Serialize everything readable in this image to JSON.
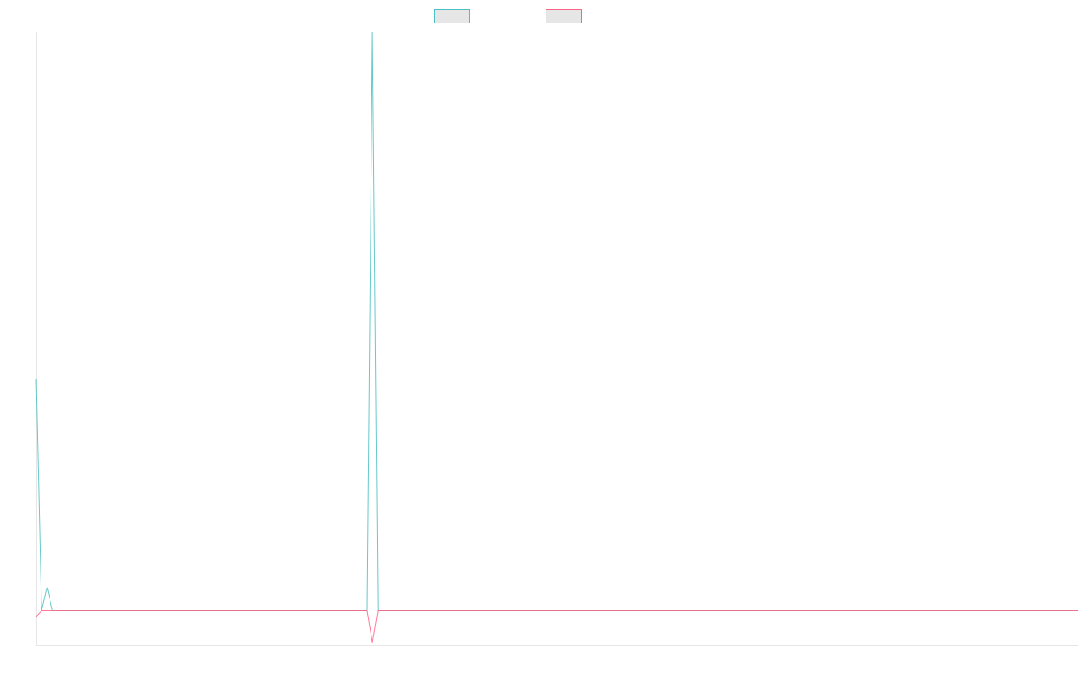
{
  "chart_data": {
    "type": "line",
    "title": "",
    "xlabel": "",
    "ylabel": "",
    "grid": false,
    "legend_position": "top-center",
    "x": [
      0,
      1,
      2,
      3,
      4,
      5,
      6,
      7,
      8,
      9,
      10,
      11,
      12,
      13,
      14,
      15,
      16,
      17,
      18,
      19,
      20,
      21,
      22,
      23,
      24,
      25,
      26,
      27,
      28,
      29,
      30,
      31,
      32,
      33,
      34,
      35,
      36,
      37,
      38,
      39,
      40,
      41,
      42,
      43,
      44,
      45,
      46,
      47,
      48,
      49,
      50,
      51,
      52,
      53,
      54,
      55,
      56,
      57,
      58,
      59,
      60,
      61,
      62,
      63,
      64,
      65,
      66,
      67,
      68,
      69,
      70,
      71,
      72,
      73,
      74,
      75,
      76,
      77,
      78,
      79,
      80,
      81,
      82,
      83,
      84,
      85,
      86,
      87,
      88,
      89,
      90,
      91,
      92,
      93,
      94,
      95,
      96,
      97,
      98,
      99,
      100,
      101,
      102,
      103,
      104,
      105,
      106,
      107,
      108,
      109,
      110,
      111,
      112,
      113,
      114,
      115,
      116,
      117,
      118,
      119,
      120,
      121,
      122,
      123,
      124,
      125,
      126,
      127,
      128,
      129,
      130,
      131,
      132,
      133,
      134,
      135,
      136,
      137,
      138,
      139,
      140,
      141,
      142,
      143,
      144,
      145,
      146,
      147,
      148,
      149,
      150,
      151,
      152,
      153,
      154,
      155,
      156,
      157,
      158,
      159,
      160,
      161,
      162,
      163,
      164,
      165,
      166,
      167,
      168,
      169,
      170,
      171,
      172,
      173,
      174,
      175,
      176,
      177,
      178,
      179,
      180,
      181,
      182,
      183,
      184,
      185,
      186,
      187,
      188,
      189
    ],
    "xlim": [
      0,
      189
    ],
    "ylim": [
      -6,
      100
    ],
    "series": [
      {
        "name": "",
        "color": "#4bc0c0",
        "values": [
          40,
          0,
          4,
          0,
          0,
          0,
          0,
          0,
          0,
          0,
          0,
          0,
          0,
          0,
          0,
          0,
          0,
          0,
          0,
          0,
          0,
          0,
          0,
          0,
          0,
          0,
          0,
          0,
          0,
          0,
          0,
          0,
          0,
          0,
          0,
          0,
          0,
          0,
          0,
          0,
          0,
          0,
          0,
          0,
          0,
          0,
          0,
          0,
          0,
          0,
          0,
          0,
          0,
          0,
          0,
          0,
          0,
          0,
          0,
          0,
          0,
          100,
          0,
          0,
          0,
          0,
          0,
          0,
          0,
          0,
          0,
          0,
          0,
          0,
          0,
          0,
          0,
          0,
          0,
          0,
          0,
          0,
          0,
          0,
          0,
          0,
          0,
          0,
          0,
          0,
          0,
          0,
          0,
          0,
          0,
          0,
          0,
          0,
          0,
          0,
          0,
          0,
          0,
          0,
          0,
          0,
          0,
          0,
          0,
          0,
          0,
          0,
          0,
          0,
          0,
          0,
          0,
          0,
          0,
          0,
          0,
          0,
          0,
          0,
          0,
          0,
          0,
          0,
          0,
          0,
          0,
          0,
          0,
          0,
          0,
          0,
          0,
          0,
          0,
          0,
          0,
          0,
          0,
          0,
          0,
          0,
          0,
          0,
          0,
          0,
          0,
          0,
          0,
          0,
          0,
          0,
          0,
          0,
          0,
          0,
          0,
          0,
          0,
          0,
          0,
          0,
          0,
          0,
          0,
          0,
          0,
          0,
          0,
          0,
          0,
          0,
          0,
          0,
          0,
          0,
          0,
          0,
          0,
          0,
          0,
          0,
          0,
          0,
          0,
          0
        ]
      },
      {
        "name": "",
        "color": "#ff6384",
        "values": [
          -1,
          0,
          0,
          0,
          0,
          0,
          0,
          0,
          0,
          0,
          0,
          0,
          0,
          0,
          0,
          0,
          0,
          0,
          0,
          0,
          0,
          0,
          0,
          0,
          0,
          0,
          0,
          0,
          0,
          0,
          0,
          0,
          0,
          0,
          0,
          0,
          0,
          0,
          0,
          0,
          0,
          0,
          0,
          0,
          0,
          0,
          0,
          0,
          0,
          0,
          0,
          0,
          0,
          0,
          0,
          0,
          0,
          0,
          0,
          0,
          0,
          -5.5,
          0,
          0,
          0,
          0,
          0,
          0,
          0,
          0,
          0,
          0,
          0,
          0,
          0,
          0,
          0,
          0,
          0,
          0,
          0,
          0,
          0,
          0,
          0,
          0,
          0,
          0,
          0,
          0,
          0,
          0,
          0,
          0,
          0,
          0,
          0,
          0,
          0,
          0,
          0,
          0,
          0,
          0,
          0,
          0,
          0,
          0,
          0,
          0,
          0,
          0,
          0,
          0,
          0,
          0,
          0,
          0,
          0,
          0,
          0,
          0,
          0,
          0,
          0,
          0,
          0,
          0,
          0,
          0,
          0,
          0,
          0,
          0,
          0,
          0,
          0,
          0,
          0,
          0,
          0,
          0,
          0,
          0,
          0,
          0,
          0,
          0,
          0,
          0,
          0,
          0,
          0,
          0,
          0,
          0,
          0,
          0,
          0,
          0,
          0,
          0,
          0,
          0,
          0,
          0,
          0,
          0,
          0,
          0,
          0,
          0,
          0,
          0,
          0,
          0,
          0,
          0,
          0,
          0,
          0,
          0,
          0,
          0,
          0,
          0,
          0,
          0,
          0,
          0
        ]
      }
    ]
  }
}
